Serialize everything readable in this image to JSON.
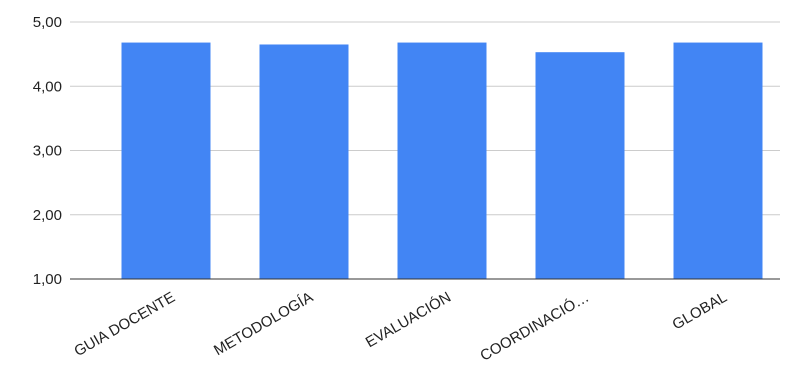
{
  "chart_data": {
    "type": "bar",
    "title": "",
    "xlabel": "",
    "ylabel": "",
    "categories": [
      "GUIA DOCENTE",
      "METODOLOGÍA",
      "EVALUACIÓN",
      "COORDINACIÓ…",
      "GLOBAL"
    ],
    "values": [
      4.68,
      4.65,
      4.68,
      4.53,
      4.68
    ],
    "ylim": [
      1.0,
      5.0
    ],
    "yticks": [
      1.0,
      2.0,
      3.0,
      4.0,
      5.0
    ],
    "ytick_labels": [
      "1,00",
      "2,00",
      "3,00",
      "4,00",
      "5,00"
    ],
    "grid": true,
    "legend": "none",
    "bar_color": "#4285f4"
  }
}
